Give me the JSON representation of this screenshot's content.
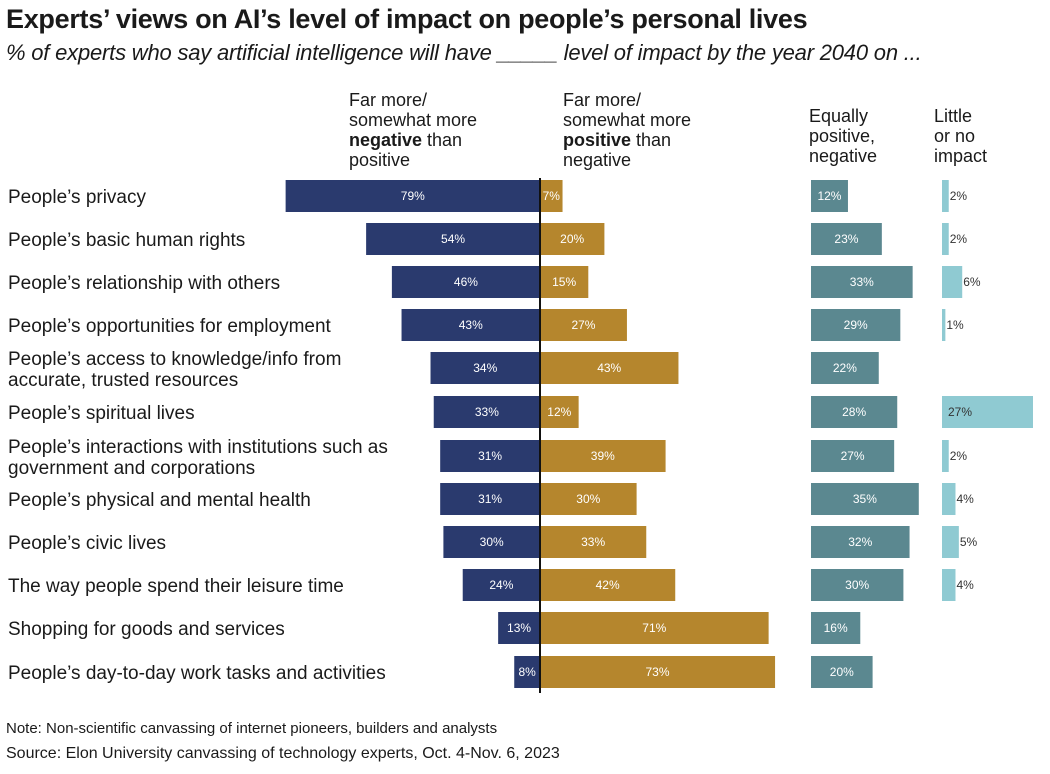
{
  "header": {
    "title": "Experts’ views on AI’s level of impact on people’s personal lives",
    "subtitle": "% of experts who say artificial intelligence will have _____ level of impact by the year 2040 on ..."
  },
  "columns": {
    "negative": {
      "line1": "Far more/",
      "line2": "somewhat more",
      "bold": "negative",
      "rest3": " than",
      "line4": "positive"
    },
    "positive": {
      "line1": "Far more/",
      "line2": "somewhat more",
      "bold": "positive",
      "rest3": " than",
      "line4": "negative"
    },
    "equal": {
      "line1": "Equally",
      "line2": "positive,",
      "line3": "negative"
    },
    "little": {
      "line1": "Little",
      "line2": "or no",
      "line3": "impact"
    }
  },
  "footer": {
    "note": "Note: Non-scientific canvassing of internet pioneers, builders and analysts",
    "source": "Source: Elon University canvassing of technology experts, Oct. 4-Nov. 6, 2023"
  },
  "colors": {
    "negative": "#2a3a6e",
    "positive": "#b5862d",
    "equal": "#5b8890",
    "little": "#8fcad2"
  },
  "chart_data": {
    "type": "bar",
    "categories": [
      [
        "People’s privacy"
      ],
      [
        "People’s basic human rights"
      ],
      [
        "People’s relationship with others"
      ],
      [
        "People’s opportunities for employment"
      ],
      [
        "People’s access to knowledge/info from",
        "accurate, trusted resources"
      ],
      [
        "People’s spiritual lives"
      ],
      [
        "People’s interactions with institutions such as",
        "government and corporations"
      ],
      [
        "People’s physical and mental health"
      ],
      [
        "People’s civic lives"
      ],
      [
        "The way people spend their leisure time"
      ],
      [
        "Shopping for goods and services"
      ],
      [
        "People’s day-to-day work tasks and activities"
      ]
    ],
    "series": [
      {
        "key": "negative",
        "values": [
          79,
          54,
          46,
          43,
          34,
          33,
          31,
          31,
          30,
          24,
          13,
          8
        ]
      },
      {
        "key": "positive",
        "values": [
          7,
          20,
          15,
          27,
          43,
          12,
          39,
          30,
          33,
          42,
          71,
          73
        ]
      },
      {
        "key": "equal",
        "values": [
          12,
          23,
          33,
          29,
          22,
          28,
          27,
          35,
          32,
          30,
          16,
          20
        ]
      },
      {
        "key": "little",
        "values": [
          2,
          2,
          6,
          1,
          null,
          27,
          2,
          4,
          5,
          4,
          null,
          null
        ]
      }
    ],
    "value_suffix": "%",
    "legend": "column-headers"
  }
}
